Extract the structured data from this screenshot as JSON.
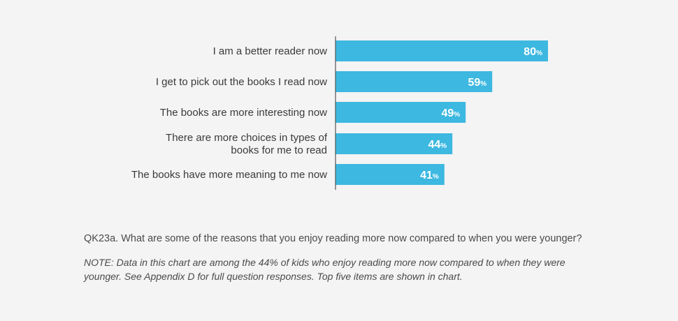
{
  "chart_data": {
    "type": "bar",
    "orientation": "horizontal",
    "categories": [
      [
        "I am a better reader now"
      ],
      [
        "I get to pick out the books I read now"
      ],
      [
        "The books are more interesting now"
      ],
      [
        "There are more choices in types of",
        "books for me to read"
      ],
      [
        "The books have more meaning to me now"
      ]
    ],
    "values": [
      80,
      59,
      49,
      44,
      41
    ],
    "value_suffix": "%",
    "bar_color": "#3db8e0",
    "grid": false,
    "legend": "none"
  },
  "footer": {
    "question": "QK23a. What are some of the reasons that you enjoy reading more now compared to when you were younger?",
    "note": "NOTE: Data in this chart are among the 44% of kids who enjoy reading more now compared to when they were younger. See Appendix D for full question responses. Top five items are shown in chart."
  }
}
